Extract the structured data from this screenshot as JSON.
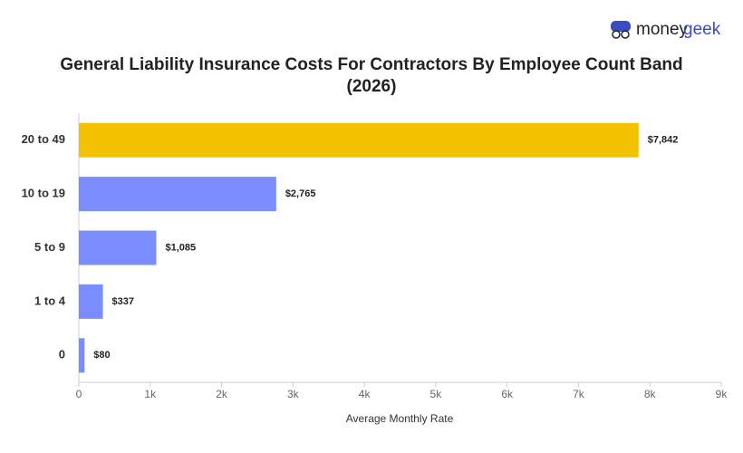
{
  "brand": {
    "first": "money",
    "second": "geek"
  },
  "chart_data": {
    "type": "hbar",
    "title": "General Liability Insurance Costs For Contractors By Employee Count Band (2026)",
    "x_label": "Average Monthly Rate",
    "categories": [
      "20 to 49",
      "10 to 19",
      "5 to 9",
      "1 to 4",
      "0"
    ],
    "values": [
      7842,
      2765,
      1085,
      337,
      80
    ],
    "value_labels": [
      "$7,842",
      "$2,765",
      "$1,085",
      "$337",
      "$80"
    ],
    "colors": [
      "#f2c200",
      "#7b8cff",
      "#7b8cff",
      "#7b8cff",
      "#7b8cff"
    ],
    "xlim": [
      0,
      9000
    ],
    "xticks": [
      0,
      {
        "value": 1000,
        "label": "1k"
      },
      {
        "value": 2000,
        "label": "2k"
      },
      {
        "value": 3000,
        "label": "3k"
      },
      {
        "value": 4000,
        "label": "4k"
      },
      {
        "value": 5000,
        "label": "5k"
      },
      {
        "value": 6000,
        "label": "6k"
      },
      {
        "value": 7000,
        "label": "7k"
      },
      {
        "value": 8000,
        "label": "8k"
      },
      {
        "value": 9000,
        "label": "9k"
      }
    ]
  }
}
